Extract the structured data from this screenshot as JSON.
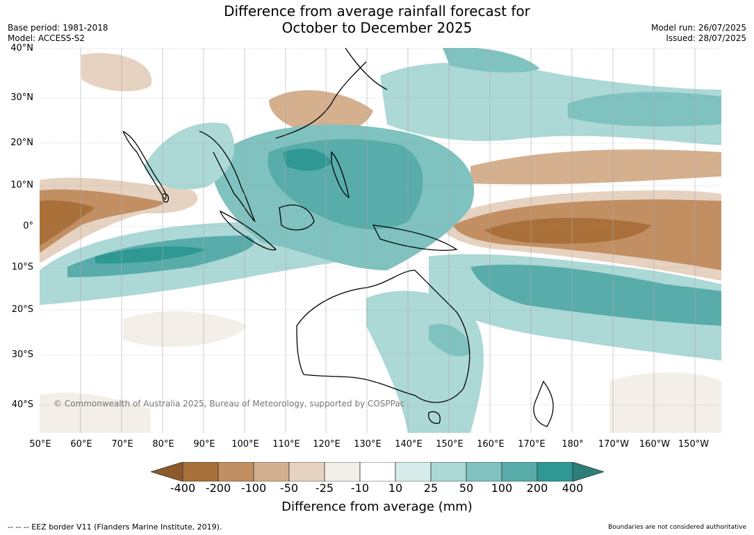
{
  "title": "Difference from average rainfall forecast for October to December 2025",
  "title_line1": "Difference from average rainfall forecast for",
  "title_line2": "October to December 2025",
  "meta_left": {
    "base_period": "Base period: 1981-2018",
    "model": "Model: ACCESS-S2"
  },
  "meta_right": {
    "model_run": "Model run: 26/07/2025",
    "issued": "Issued: 28/07/2025"
  },
  "lat_labels": [
    "40°N",
    "30°N",
    "20°N",
    "10°N",
    "0°",
    "10°S",
    "20°S",
    "30°S",
    "40°S"
  ],
  "lon_labels": [
    "50°E",
    "60°E",
    "70°E",
    "80°E",
    "90°E",
    "100°E",
    "110°E",
    "120°E",
    "130°E",
    "140°E",
    "150°E",
    "160°E",
    "170°E",
    "180°",
    "170°W",
    "160°W",
    "150°W"
  ],
  "copyright": "© Commonwealth of Australia 2025, Bureau of Meteorology, supported by COSPPac",
  "colorbar": {
    "ticks": [
      "-400",
      "-200",
      "-100",
      "-50",
      "-25",
      "-10",
      "10",
      "25",
      "50",
      "100",
      "200",
      "400"
    ],
    "colors": [
      "#8c5a2b",
      "#a9703a",
      "#c28f63",
      "#d4b08f",
      "#e6d2c0",
      "#f3efe8",
      "#ffffff",
      "#d6eceb",
      "#acd8d6",
      "#7fc2bf",
      "#58acaa",
      "#2f9894",
      "#2d7d79"
    ],
    "label": "Difference from average (mm)"
  },
  "footer_left": "--  --  -- EEZ border V11 (Flanders Marine Institute, 2019).",
  "footer_right": "Boundaries are not considered authoritative"
}
